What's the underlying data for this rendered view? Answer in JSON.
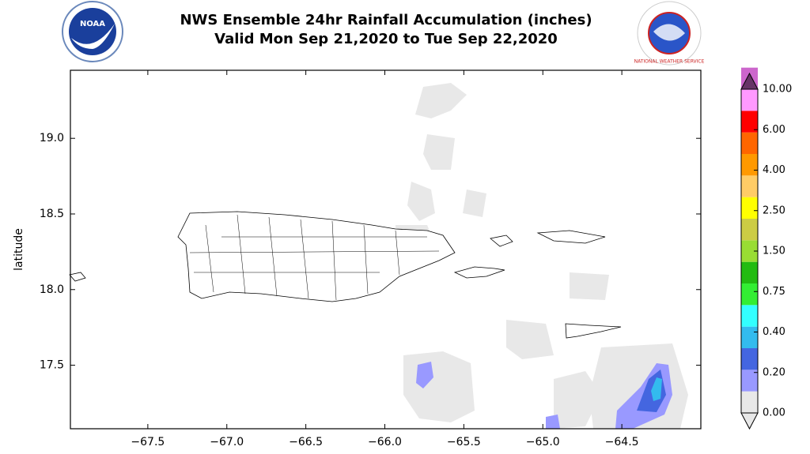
{
  "header": {
    "title_line1": "NWS Ensemble 24hr Rainfall Accumulation (inches)",
    "title_line2": "Valid Mon Sep 21,2020 to Tue Sep 22,2020",
    "logo_left": "NOAA",
    "logo_right": "NATIONAL WEATHER SERVICE"
  },
  "map": {
    "ylabel": "latitude",
    "xlim": [
      -67.99,
      -64.0
    ],
    "ylim": [
      17.08,
      19.45
    ],
    "xticks": [
      {
        "value": -67.5,
        "label": "−67.5"
      },
      {
        "value": -67.0,
        "label": "−67.0"
      },
      {
        "value": -66.5,
        "label": "−66.5"
      },
      {
        "value": -66.0,
        "label": "−66.0"
      },
      {
        "value": -65.5,
        "label": "−65.5"
      },
      {
        "value": -65.0,
        "label": "−65.0"
      },
      {
        "value": -64.5,
        "label": "−64.5"
      }
    ],
    "yticks": [
      {
        "value": 17.5,
        "label": "17.5"
      },
      {
        "value": 18.0,
        "label": "18.0"
      },
      {
        "value": 18.5,
        "label": "18.5"
      },
      {
        "value": 19.0,
        "label": "19.0"
      }
    ]
  },
  "colorbar": {
    "colors": [
      "#e8e8e8",
      "#9999ff",
      "#4466e0",
      "#33bbee",
      "#33ffff",
      "#33ee33",
      "#22bb11",
      "#99dd33",
      "#cccc44",
      "#ffff00",
      "#ffcc66",
      "#ff9900",
      "#ff6600",
      "#ff0000",
      "#ff99ff",
      "#cc66cc",
      "#993399"
    ],
    "top_color": "#663366",
    "ticks": [
      {
        "value": 0,
        "label": "0.00"
      },
      {
        "value": 0.2,
        "label": "0.20"
      },
      {
        "value": 0.4,
        "label": "0.40"
      },
      {
        "value": 0.75,
        "label": "0.75"
      },
      {
        "value": 1.5,
        "label": "1.50"
      },
      {
        "value": 2.5,
        "label": "2.50"
      },
      {
        "value": 4,
        "label": "4.00"
      },
      {
        "value": 6,
        "label": "6.00"
      },
      {
        "value": 10,
        "label": "10.00"
      }
    ]
  }
}
